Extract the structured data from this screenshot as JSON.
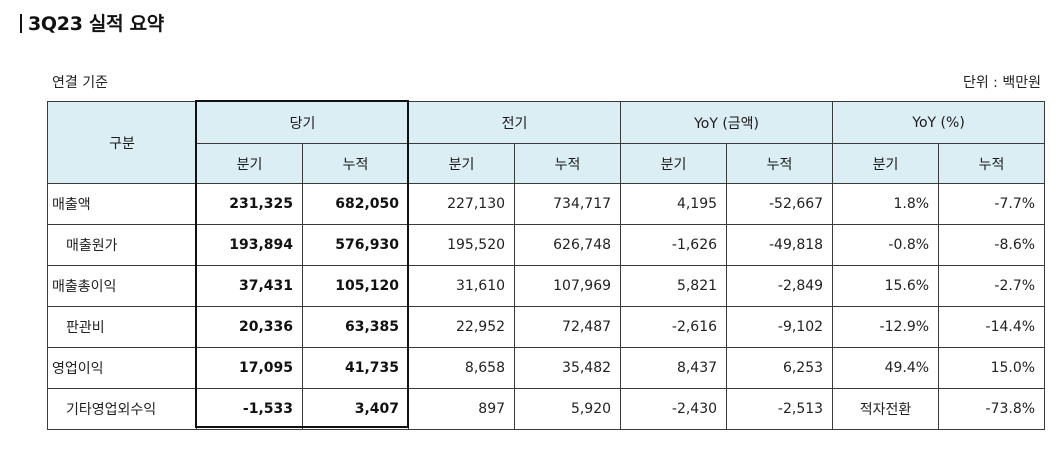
{
  "header": {
    "title": "3Q23 실적 요약",
    "basis": "연결 기준",
    "unit": "단위 : 백만원"
  },
  "table": {
    "row_header": "구분",
    "groups": [
      {
        "label": "당기",
        "sub": [
          "분기",
          "누적"
        ]
      },
      {
        "label": "전기",
        "sub": [
          "분기",
          "누적"
        ]
      },
      {
        "label": "YoY (금액)",
        "sub": [
          "분기",
          "누적"
        ]
      },
      {
        "label": "YoY (%)",
        "sub": [
          "분기",
          "누적"
        ]
      }
    ],
    "rows": [
      {
        "label": "매출액",
        "indent": false,
        "values": [
          "231,325",
          "682,050",
          "227,130",
          "734,717",
          "4,195",
          "-52,667",
          "1.8%",
          "-7.7%"
        ]
      },
      {
        "label": "매출원가",
        "indent": true,
        "values": [
          "193,894",
          "576,930",
          "195,520",
          "626,748",
          "-1,626",
          "-49,818",
          "-0.8%",
          "-8.6%"
        ]
      },
      {
        "label": "매출총이익",
        "indent": false,
        "values": [
          "37,431",
          "105,120",
          "31,610",
          "107,969",
          "5,821",
          "-2,849",
          "15.6%",
          "-2.7%"
        ]
      },
      {
        "label": "판관비",
        "indent": true,
        "values": [
          "20,336",
          "63,385",
          "22,952",
          "72,487",
          "-2,616",
          "-9,102",
          "-12.9%",
          "-14.4%"
        ]
      },
      {
        "label": "영업이익",
        "indent": false,
        "values": [
          "17,095",
          "41,735",
          "8,658",
          "35,482",
          "8,437",
          "6,253",
          "49.4%",
          "15.0%"
        ]
      },
      {
        "label": "기타영업외수익",
        "indent": true,
        "values": [
          "-1,533",
          "3,407",
          "897",
          "5,920",
          "-2,430",
          "-2,513",
          "적자전환",
          "-73.8%"
        ]
      }
    ]
  },
  "colors": {
    "header_bg": "#dbeef3",
    "border": "#3a3a3a",
    "highlight_border": "#111111"
  }
}
